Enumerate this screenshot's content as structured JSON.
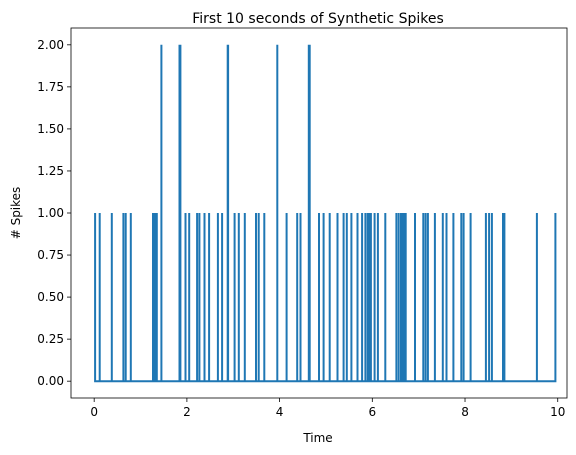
{
  "chart_data": {
    "type": "line",
    "title": "First 10 seconds of Synthetic Spikes",
    "xlabel": "Time",
    "ylabel": "# Spikes",
    "xlim": [
      -0.5,
      10.2
    ],
    "ylim": [
      -0.1,
      2.1
    ],
    "xticks": [
      0,
      2,
      4,
      6,
      8,
      10
    ],
    "xtick_labels": [
      "0",
      "2",
      "4",
      "6",
      "8",
      "10"
    ],
    "yticks": [
      0,
      0.25,
      0.5,
      0.75,
      1.0,
      1.25,
      1.5,
      1.75,
      2.0
    ],
    "ytick_labels": [
      "0.00",
      "0.25",
      "0.50",
      "0.75",
      "1.00",
      "1.25",
      "1.50",
      "1.75",
      "2.00"
    ],
    "line_color": "#1f77b4",
    "grid": false,
    "x_range": [
      0,
      9.95
    ],
    "baseline": 0,
    "spikes": [
      {
        "t": 0.02,
        "n": 1
      },
      {
        "t": 0.12,
        "n": 1
      },
      {
        "t": 0.38,
        "n": 1
      },
      {
        "t": 0.63,
        "n": 1
      },
      {
        "t": 0.68,
        "n": 1
      },
      {
        "t": 0.79,
        "n": 1
      },
      {
        "t": 1.27,
        "n": 1
      },
      {
        "t": 1.31,
        "n": 1
      },
      {
        "t": 1.35,
        "n": 1
      },
      {
        "t": 1.45,
        "n": 2
      },
      {
        "t": 1.84,
        "n": 2
      },
      {
        "t": 1.86,
        "n": 2
      },
      {
        "t": 1.97,
        "n": 1
      },
      {
        "t": 2.05,
        "n": 1
      },
      {
        "t": 2.22,
        "n": 1
      },
      {
        "t": 2.27,
        "n": 1
      },
      {
        "t": 2.38,
        "n": 1
      },
      {
        "t": 2.48,
        "n": 1
      },
      {
        "t": 2.67,
        "n": 1
      },
      {
        "t": 2.76,
        "n": 1
      },
      {
        "t": 2.88,
        "n": 2
      },
      {
        "t": 2.89,
        "n": 2
      },
      {
        "t": 3.03,
        "n": 1
      },
      {
        "t": 3.12,
        "n": 1
      },
      {
        "t": 3.25,
        "n": 1
      },
      {
        "t": 3.49,
        "n": 1
      },
      {
        "t": 3.55,
        "n": 1
      },
      {
        "t": 3.67,
        "n": 1
      },
      {
        "t": 3.95,
        "n": 2
      },
      {
        "t": 4.15,
        "n": 1
      },
      {
        "t": 4.38,
        "n": 1
      },
      {
        "t": 4.45,
        "n": 1
      },
      {
        "t": 4.63,
        "n": 2
      },
      {
        "t": 4.65,
        "n": 2
      },
      {
        "t": 4.85,
        "n": 1
      },
      {
        "t": 4.95,
        "n": 1
      },
      {
        "t": 5.08,
        "n": 1
      },
      {
        "t": 5.25,
        "n": 1
      },
      {
        "t": 5.38,
        "n": 1
      },
      {
        "t": 5.45,
        "n": 1
      },
      {
        "t": 5.55,
        "n": 1
      },
      {
        "t": 5.68,
        "n": 1
      },
      {
        "t": 5.78,
        "n": 1
      },
      {
        "t": 5.85,
        "n": 1
      },
      {
        "t": 5.9,
        "n": 1
      },
      {
        "t": 5.93,
        "n": 1
      },
      {
        "t": 5.97,
        "n": 1
      },
      {
        "t": 6.05,
        "n": 1
      },
      {
        "t": 6.12,
        "n": 1
      },
      {
        "t": 6.28,
        "n": 1
      },
      {
        "t": 6.52,
        "n": 1
      },
      {
        "t": 6.57,
        "n": 1
      },
      {
        "t": 6.62,
        "n": 1
      },
      {
        "t": 6.65,
        "n": 1
      },
      {
        "t": 6.68,
        "n": 1
      },
      {
        "t": 6.72,
        "n": 1
      },
      {
        "t": 6.92,
        "n": 1
      },
      {
        "t": 7.1,
        "n": 1
      },
      {
        "t": 7.15,
        "n": 1
      },
      {
        "t": 7.2,
        "n": 1
      },
      {
        "t": 7.35,
        "n": 1
      },
      {
        "t": 7.52,
        "n": 1
      },
      {
        "t": 7.6,
        "n": 1
      },
      {
        "t": 7.75,
        "n": 1
      },
      {
        "t": 7.92,
        "n": 1
      },
      {
        "t": 7.97,
        "n": 1
      },
      {
        "t": 8.12,
        "n": 1
      },
      {
        "t": 8.45,
        "n": 1
      },
      {
        "t": 8.52,
        "n": 1
      },
      {
        "t": 8.58,
        "n": 1
      },
      {
        "t": 8.82,
        "n": 1
      },
      {
        "t": 8.85,
        "n": 1
      },
      {
        "t": 9.55,
        "n": 1
      },
      {
        "t": 9.95,
        "n": 1
      }
    ]
  }
}
